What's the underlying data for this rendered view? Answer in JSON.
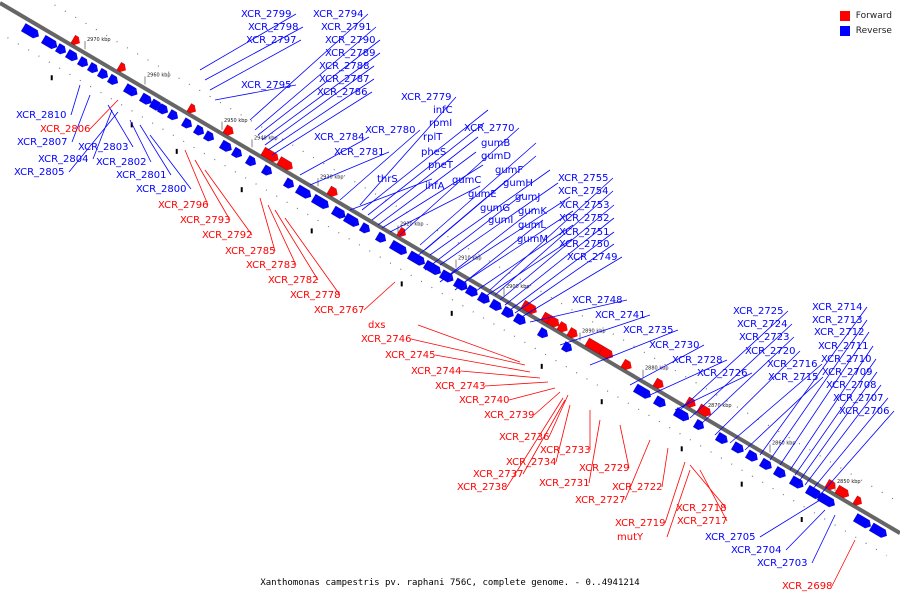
{
  "legend": {
    "forward": {
      "label": "Forward",
      "color": "#ff0000"
    },
    "reverse": {
      "label": "Reverse",
      "color": "#0000ff"
    }
  },
  "caption": "Xanthomonas campestris pv. raphani 756C, complete genome. - 0..4941214",
  "ticks": [
    "2970 kbp",
    "2960 kbp",
    "2950 kbp",
    "2940 kbp",
    "2930 kbp",
    "2920 kbp",
    "2910 kbp",
    "2900 kbp",
    "2890 kbp",
    "2880 kbp",
    "2870 kbp",
    "2860 kbp",
    "2850 kbp"
  ],
  "reverse_labels": [
    "XCR_2799",
    "XCR_2794",
    "XCR_2798",
    "XCR_2791",
    "XCR_2797",
    "XCR_2790",
    "XCR_2789",
    "XCR_2788",
    "XCR_2787",
    "XCR_2795",
    "XCR_2786",
    "XCR_2779",
    "infC",
    "rpmI",
    "XCR_2780",
    "rplT",
    "XCR_2784",
    "XCR_2770",
    "XCR_2781",
    "pheS",
    "gumB",
    "gumD",
    "pheT",
    "thrS",
    "gumF",
    "gumC",
    "ihfA",
    "gumH",
    "gumE",
    "gumJ",
    "gumG",
    "gumK",
    "gumI",
    "gumL",
    "gumM",
    "XCR_2755",
    "XCR_2754",
    "XCR_2753",
    "XCR_2752",
    "XCR_2751",
    "XCR_2750",
    "XCR_2749",
    "XCR_2748",
    "XCR_2741",
    "XCR_2735",
    "XCR_2730",
    "XCR_2728",
    "XCR_2726",
    "XCR_2725",
    "XCR_2724",
    "XCR_2723",
    "XCR_2720",
    "XCR_2716",
    "XCR_2715",
    "XCR_2714",
    "XCR_2713",
    "XCR_2712",
    "XCR_2711",
    "XCR_2710",
    "XCR_2709",
    "XCR_2708",
    "XCR_2707",
    "XCR_2706",
    "XCR_2810",
    "XCR_2807",
    "XCR_2803",
    "XCR_2804",
    "XCR_2802",
    "XCR_2805",
    "XCR_2801",
    "XCR_2800",
    "XCR_2705",
    "XCR_2704",
    "XCR_2703"
  ],
  "forward_labels": [
    "XCR_2806",
    "XCR_2796",
    "XCR_2793",
    "XCR_2792",
    "XCR_2785",
    "XCR_2783",
    "XCR_2782",
    "XCR_2778",
    "XCR_2767",
    "dxs",
    "XCR_2746",
    "XCR_2745",
    "XCR_2744",
    "XCR_2743",
    "XCR_2740",
    "XCR_2739",
    "XCR_2736",
    "XCR_2733",
    "XCR_2734",
    "XCR_2737",
    "XCR_2738",
    "XCR_2731",
    "XCR_2729",
    "XCR_2727",
    "XCR_2722",
    "XCR_2718",
    "XCR_2719",
    "XCR_2717",
    "mutY",
    "XCR_2698"
  ]
}
